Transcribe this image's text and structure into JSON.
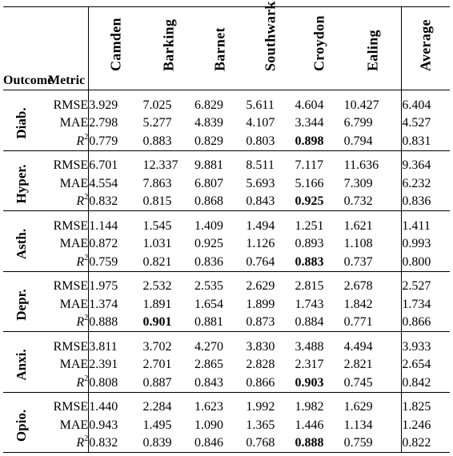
{
  "header": {
    "outcome": "Outcome",
    "metric": "Metric",
    "columns": [
      "Camden",
      "Barking",
      "Barnet",
      "Southwark",
      "Croydon",
      "Ealing"
    ],
    "average": "Average"
  },
  "metric_labels": [
    "RMSE",
    "MAE",
    "R",
    "2"
  ],
  "groups": [
    {
      "outcome": "Diab.",
      "rows": [
        {
          "values": [
            "3.929",
            "7.025",
            "6.829",
            "5.611",
            "4.604",
            "10.427"
          ],
          "avg": "6.404"
        },
        {
          "values": [
            "2.798",
            "5.277",
            "4.839",
            "4.107",
            "3.344",
            "6.799"
          ],
          "avg": "4.527"
        },
        {
          "values": [
            "0.779",
            "0.883",
            "0.829",
            "0.803",
            "0.898",
            "0.794"
          ],
          "avg": "0.831",
          "bold": 4
        }
      ]
    },
    {
      "outcome": "Hyper.",
      "rows": [
        {
          "values": [
            "6.701",
            "12.337",
            "9.881",
            "8.511",
            "7.117",
            "11.636"
          ],
          "avg": "9.364"
        },
        {
          "values": [
            "4.554",
            "7.863",
            "6.807",
            "5.693",
            "5.166",
            "7.309"
          ],
          "avg": "6.232"
        },
        {
          "values": [
            "0.832",
            "0.815",
            "0.868",
            "0.843",
            "0.925",
            "0.732"
          ],
          "avg": "0.836",
          "bold": 4
        }
      ]
    },
    {
      "outcome": "Asth.",
      "rows": [
        {
          "values": [
            "1.144",
            "1.545",
            "1.409",
            "1.494",
            "1.251",
            "1.621"
          ],
          "avg": "1.411"
        },
        {
          "values": [
            "0.872",
            "1.031",
            "0.925",
            "1.126",
            "0.893",
            "1.108"
          ],
          "avg": "0.993"
        },
        {
          "values": [
            "0.759",
            "0.821",
            "0.836",
            "0.764",
            "0.883",
            "0.737"
          ],
          "avg": "0.800",
          "bold": 4
        }
      ]
    },
    {
      "outcome": "Depr.",
      "rows": [
        {
          "values": [
            "1.975",
            "2.532",
            "2.535",
            "2.629",
            "2.815",
            "2.678"
          ],
          "avg": "2.527"
        },
        {
          "values": [
            "1.374",
            "1.891",
            "1.654",
            "1.899",
            "1.743",
            "1.842"
          ],
          "avg": "1.734"
        },
        {
          "values": [
            "0.888",
            "0.901",
            "0.881",
            "0.873",
            "0.884",
            "0.771"
          ],
          "avg": "0.866",
          "bold": 1
        }
      ]
    },
    {
      "outcome": "Anxi.",
      "rows": [
        {
          "values": [
            "3.811",
            "3.702",
            "4.270",
            "3.830",
            "3.488",
            "4.494"
          ],
          "avg": "3.933"
        },
        {
          "values": [
            "2.391",
            "2.701",
            "2.865",
            "2.828",
            "2.317",
            "2.821"
          ],
          "avg": "2.654"
        },
        {
          "values": [
            "0.808",
            "0.887",
            "0.843",
            "0.866",
            "0.903",
            "0.745"
          ],
          "avg": "0.842",
          "bold": 4
        }
      ]
    },
    {
      "outcome": "Opio.",
      "rows": [
        {
          "values": [
            "1.440",
            "2.284",
            "1.623",
            "1.992",
            "1.982",
            "1.629"
          ],
          "avg": "1.825"
        },
        {
          "values": [
            "0.943",
            "1.495",
            "1.090",
            "1.365",
            "1.446",
            "1.134"
          ],
          "avg": "1.246"
        },
        {
          "values": [
            "0.832",
            "0.839",
            "0.846",
            "0.768",
            "0.888",
            "0.759"
          ],
          "avg": "0.822",
          "bold": 4
        }
      ]
    }
  ]
}
